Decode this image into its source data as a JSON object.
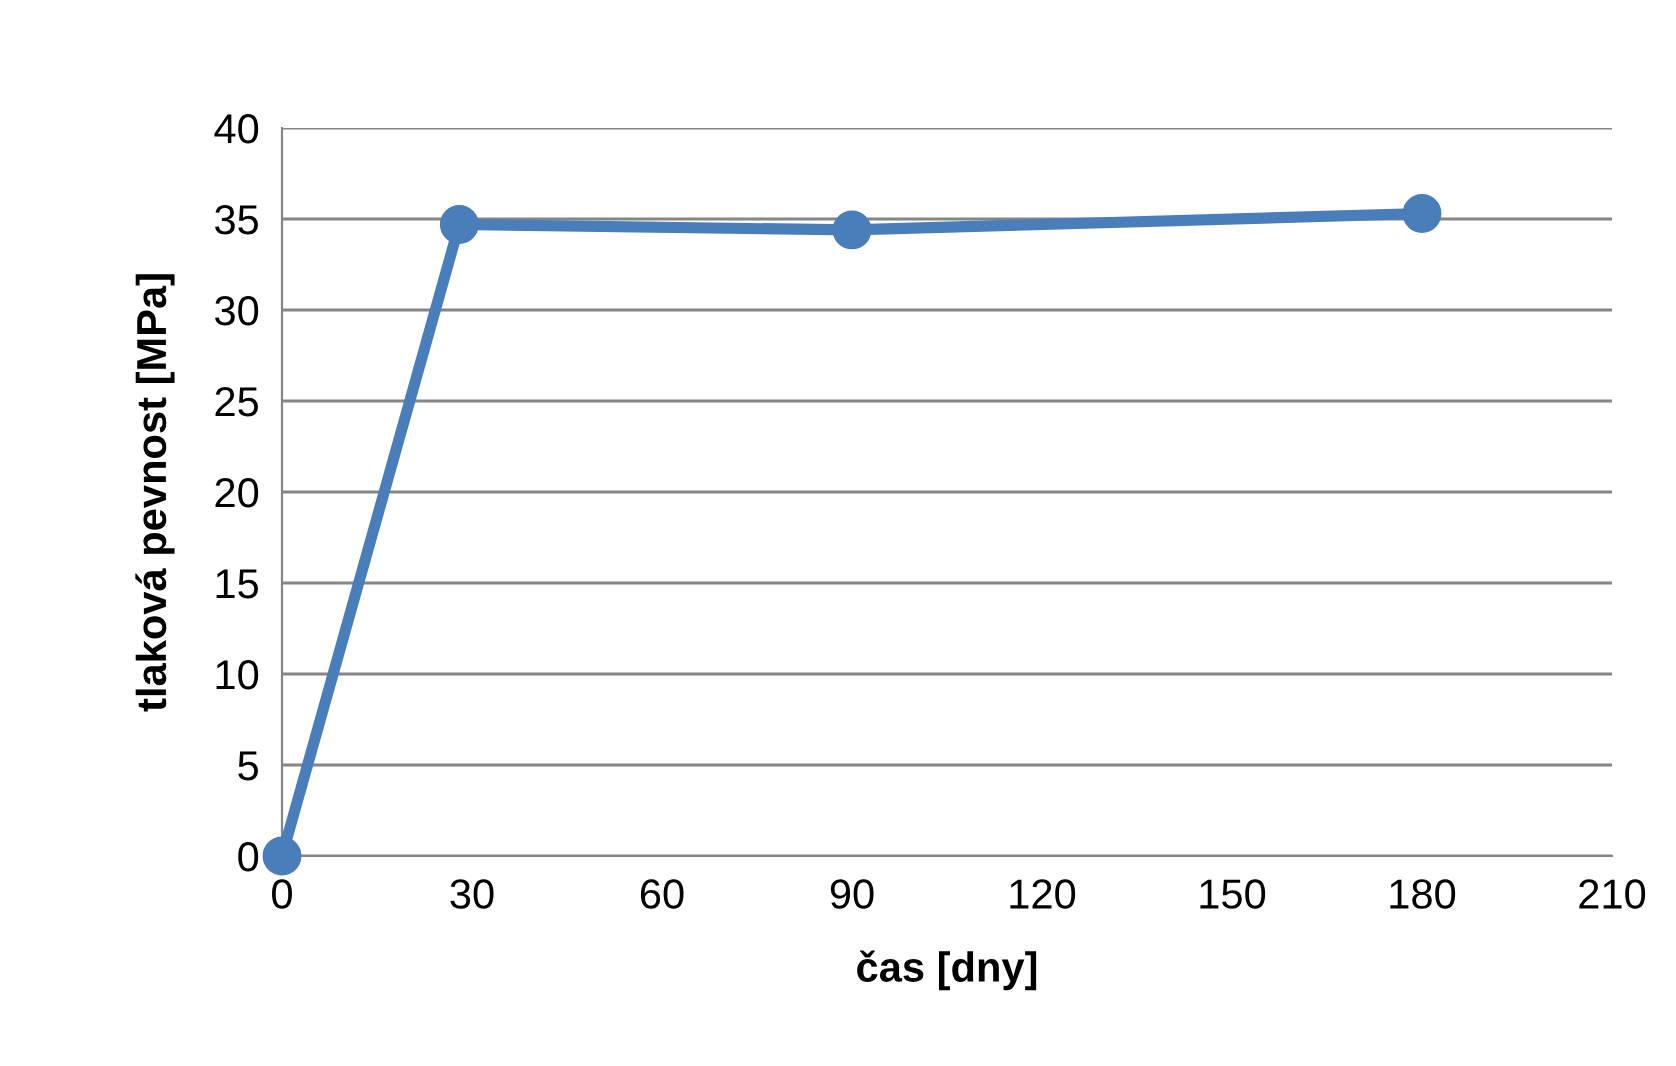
{
  "chart_data": {
    "type": "line",
    "xlabel": "čas [dny]",
    "ylabel": "tlaková pevnost [MPa]",
    "x": [
      0,
      28,
      90,
      180
    ],
    "series": [
      {
        "color": "#4a7ebb",
        "values": [
          0,
          34.7,
          34.4,
          35.3
        ]
      }
    ],
    "xlim": [
      0,
      210
    ],
    "xticks": [
      0,
      30,
      60,
      90,
      120,
      150,
      180,
      210
    ],
    "ylim": [
      0,
      40
    ],
    "yticks": [
      0,
      5,
      10,
      15,
      20,
      25,
      30,
      35,
      40
    ],
    "grid": "y",
    "marker": "circle",
    "line_style": "solid"
  }
}
